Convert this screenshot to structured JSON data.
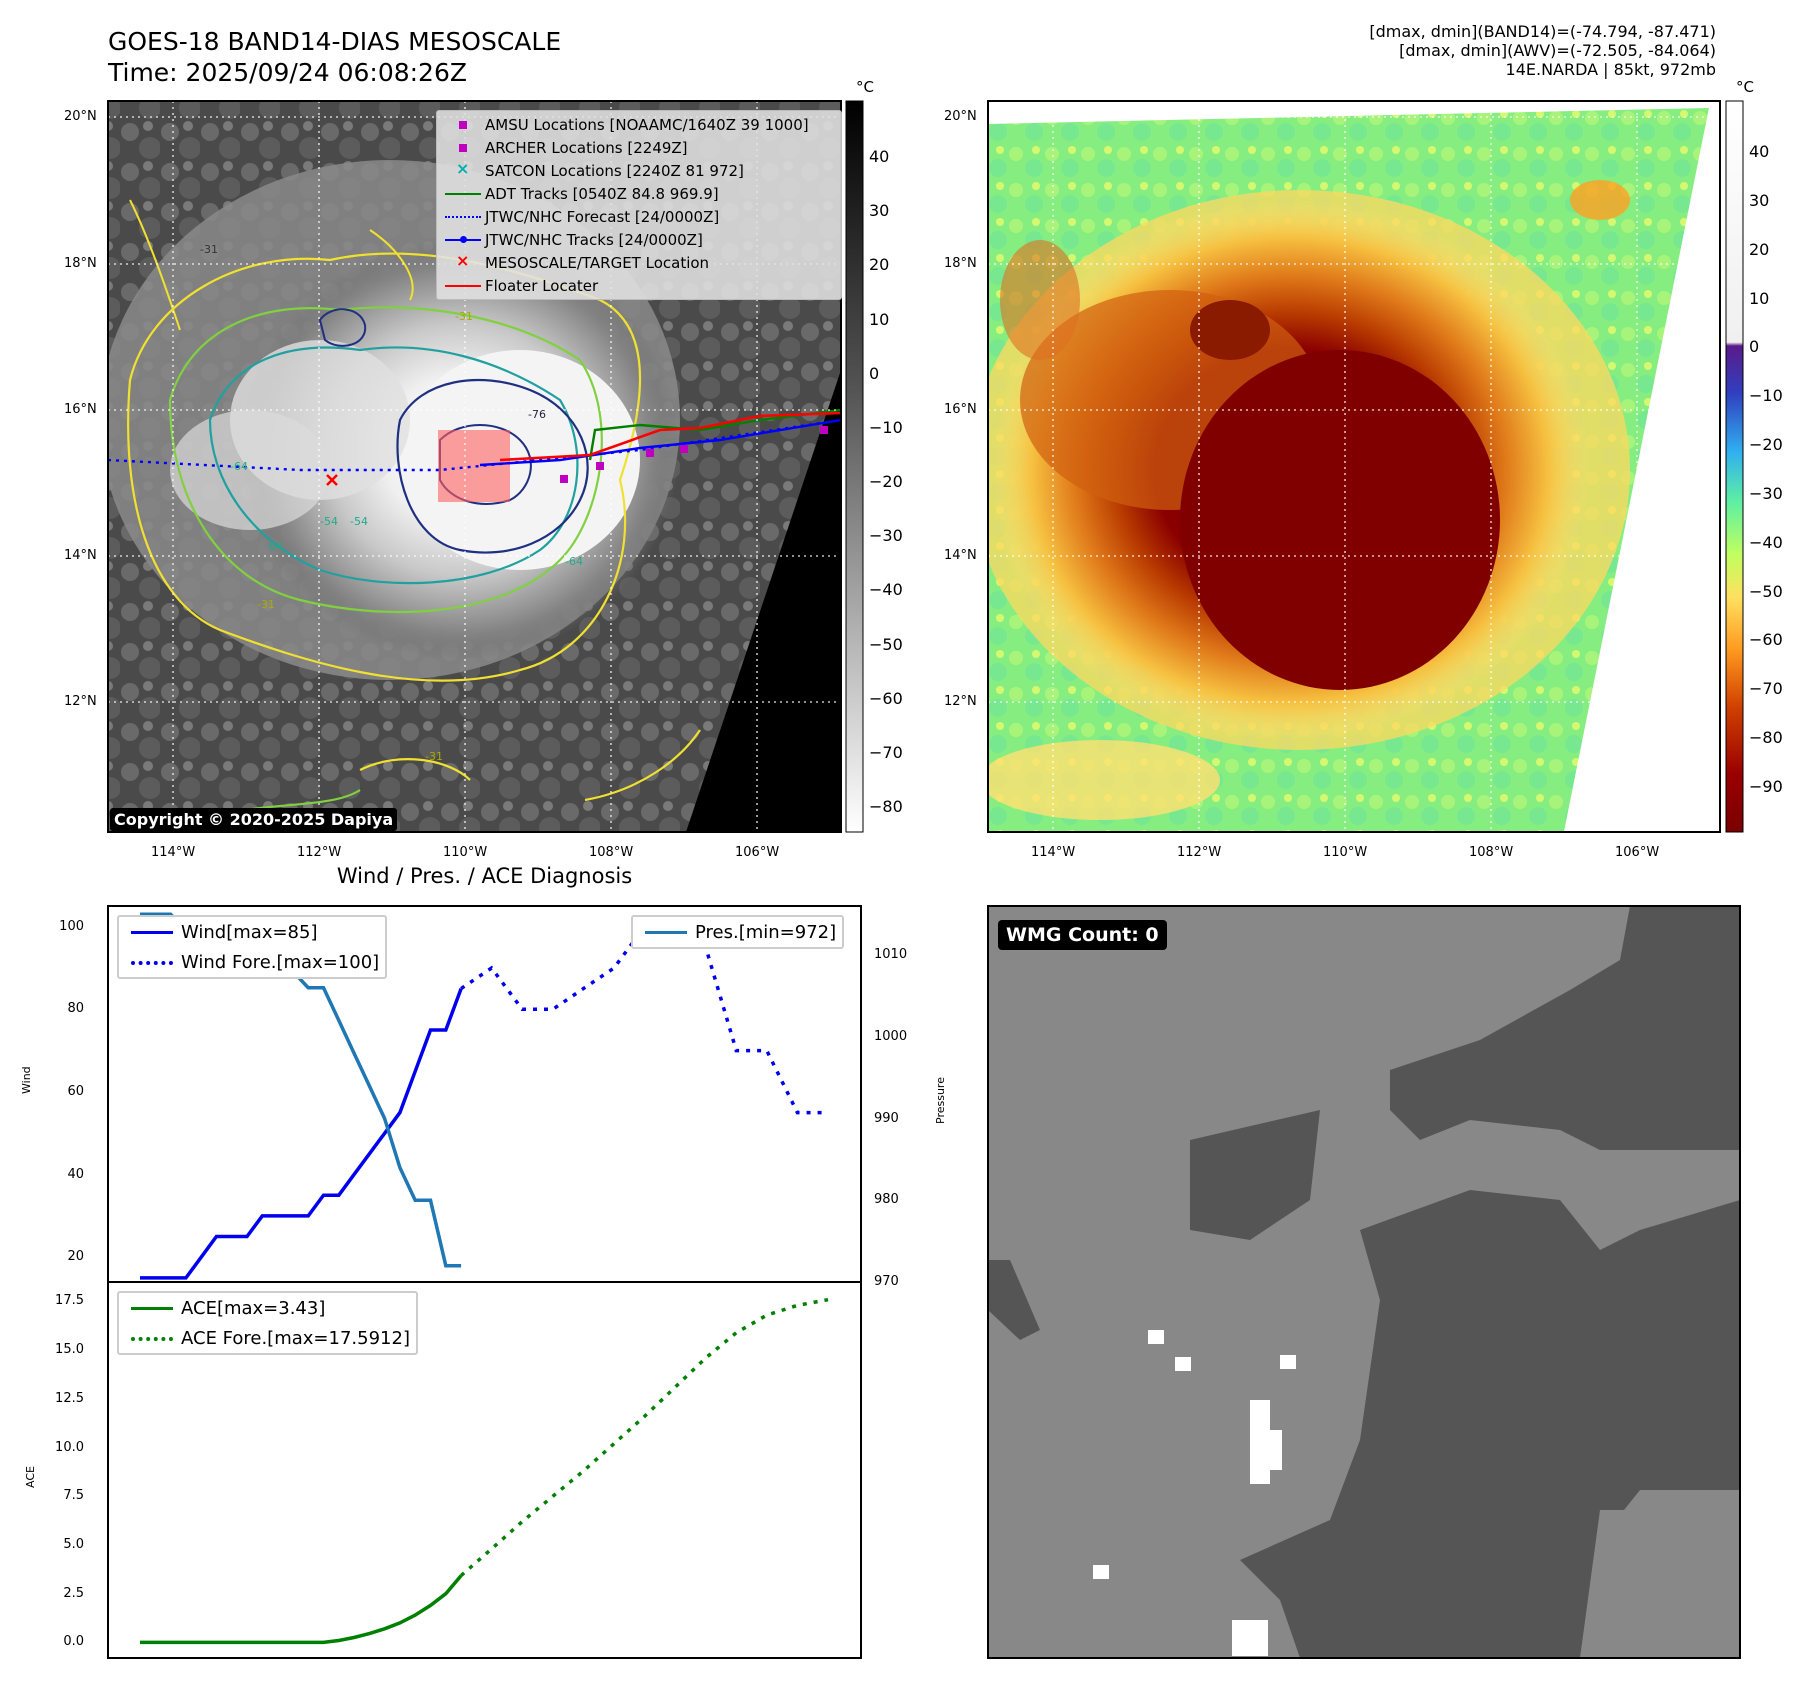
{
  "header": {
    "title_line1": "GOES-18 BAND14-DIAS MESOSCALE",
    "title_line2": "Time: 2025/09/24 06:08:26Z",
    "info_line1": "[dmax, dmin](BAND14)=(-74.794, -87.471)",
    "info_line2": "[dmax, dmin](AWV)=(-72.505, -84.064)",
    "info_line3": "14E.NARDA | 85kt, 972mb"
  },
  "map": {
    "lat_labels": [
      "20°N",
      "18°N",
      "16°N",
      "14°N",
      "12°N"
    ],
    "lon_labels": [
      "114°W",
      "112°W",
      "110°W",
      "108°W",
      "106°W"
    ],
    "copyright": "Copyright © 2020-2025 Dapiya",
    "contour_labels": [
      "-31",
      "-54",
      "-64",
      "-76",
      "-64",
      "-64",
      "-54",
      "-31",
      "-31",
      "-31"
    ],
    "legend": [
      {
        "label": "AMSU Locations [NOAAMC/1640Z 39 1000]",
        "color": "#c000c0",
        "symbol": "square"
      },
      {
        "label": "ARCHER Locations [2249Z]",
        "color": "#c000c0",
        "symbol": "square"
      },
      {
        "label": "SATCON Locations [2240Z 81 972]",
        "color": "#00b0b0",
        "symbol": "x"
      },
      {
        "label": "ADT Tracks [0540Z 84.8 969.9]",
        "color": "#008000",
        "symbol": "line"
      },
      {
        "label": "JTWC/NHC Forecast [24/0000Z]",
        "color": "#0000ff",
        "symbol": "dotted"
      },
      {
        "label": "JTWC/NHC Tracks [24/0000Z]",
        "color": "#0000ff",
        "symbol": "line-dot"
      },
      {
        "label": "MESOSCALE/TARGET Location",
        "color": "#ff0000",
        "symbol": "x"
      },
      {
        "label": "Floater Locater",
        "color": "#ff0000",
        "symbol": "line"
      }
    ]
  },
  "colorbar_gray": {
    "unit": "°C",
    "ticks": [
      "40",
      "30",
      "20",
      "10",
      "0",
      "−10",
      "−20",
      "−30",
      "−40",
      "−50",
      "−60",
      "−70",
      "−80"
    ]
  },
  "colorbar_color": {
    "unit": "°C",
    "ticks": [
      "40",
      "30",
      "20",
      "10",
      "0",
      "−10",
      "−20",
      "−30",
      "−40",
      "−50",
      "−60",
      "−70",
      "−80",
      "−90"
    ]
  },
  "wmg": {
    "badge": "WMG Count: 0"
  },
  "chart_data": [
    {
      "type": "line",
      "title": "Wind / Pres. / ACE Diagnosis",
      "ylabel": "Wind",
      "y2label": "Pressure",
      "ylim": [
        14,
        105
      ],
      "y2lim": [
        970,
        1016
      ],
      "yticks": [
        "20",
        "40",
        "60",
        "80",
        "100"
      ],
      "y2ticks": [
        "970",
        "980",
        "990",
        "1000",
        "1010"
      ],
      "series": [
        {
          "name": "Wind[max=85]",
          "style": "solid",
          "color": "#0000ee",
          "axis": "left",
          "x": [
            0,
            1,
            2,
            3,
            4,
            5,
            6,
            7,
            8,
            9,
            10,
            11,
            12,
            13,
            14,
            15,
            16,
            17,
            18,
            19,
            20,
            21,
            22,
            23
          ],
          "values": [
            15,
            15,
            15,
            15,
            20,
            25,
            25,
            25,
            30,
            30,
            30,
            30,
            35,
            35,
            40,
            45,
            50,
            55,
            65,
            75,
            75,
            85,
            null,
            null
          ]
        },
        {
          "name": "Wind Fore.[max=100]",
          "style": "dotted",
          "color": "#0000ee",
          "axis": "left",
          "x": [
            21,
            23,
            25,
            27,
            29,
            31,
            33,
            35,
            37,
            39,
            41,
            43,
            45
          ],
          "values": [
            85,
            90,
            80,
            80,
            85,
            90,
            100,
            95,
            95,
            70,
            70,
            55,
            55
          ]
        },
        {
          "name": "Pres.[min=972]",
          "style": "solid",
          "color": "#1f77b4",
          "axis": "right",
          "x": [
            0,
            1,
            2,
            3,
            4,
            5,
            6,
            7,
            8,
            9,
            10,
            11,
            12,
            13,
            14,
            15,
            16,
            17,
            18,
            19,
            20,
            21
          ],
          "values": [
            1015,
            1015,
            1015,
            1013,
            1008,
            1008,
            1008,
            1008,
            1008,
            1008,
            1008,
            1006,
            1006,
            1002,
            998,
            994,
            990,
            984,
            980,
            980,
            972,
            972
          ]
        }
      ]
    },
    {
      "type": "line",
      "ylabel": "ACE",
      "ylim": [
        -0.8,
        18.5
      ],
      "yticks": [
        "0.0",
        "2.5",
        "5.0",
        "7.5",
        "10.0",
        "12.5",
        "15.0",
        "17.5"
      ],
      "series": [
        {
          "name": "ACE[max=3.43]",
          "style": "solid",
          "color": "#008000",
          "x": [
            0,
            2,
            4,
            6,
            8,
            10,
            12,
            13,
            14,
            15,
            16,
            17,
            18,
            19,
            20,
            21
          ],
          "values": [
            0,
            0,
            0,
            0,
            0,
            0,
            0,
            0.1,
            0.25,
            0.45,
            0.7,
            1.0,
            1.4,
            1.9,
            2.5,
            3.43
          ]
        },
        {
          "name": "ACE Fore.[max=17.5912]",
          "style": "dotted",
          "color": "#008000",
          "x": [
            21,
            23,
            25,
            27,
            29,
            31,
            33,
            35,
            37,
            39,
            41,
            43,
            45
          ],
          "values": [
            3.43,
            4.8,
            6.2,
            7.5,
            8.8,
            10.2,
            11.6,
            13.1,
            14.6,
            15.9,
            16.8,
            17.3,
            17.59
          ]
        }
      ]
    }
  ]
}
